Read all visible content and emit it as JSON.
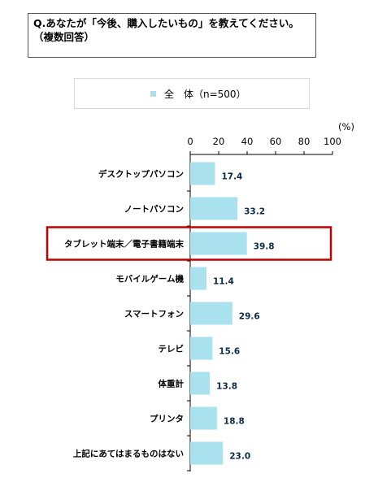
{
  "question": {
    "line1": "Q.あなたが「今後、購入したいもの」を教えてください。",
    "line2": "（複数回答）"
  },
  "legend": {
    "label": "全　体（n=500）"
  },
  "colors": {
    "bar": "#a9e1ee",
    "highlight": "#c00000",
    "axis": "#000000"
  },
  "chart_data": {
    "type": "bar",
    "orientation": "horizontal",
    "unit_label": "(%)",
    "xlim": [
      0,
      100
    ],
    "ticks": [
      "0",
      "20",
      "40",
      "60",
      "80",
      "100"
    ],
    "grid": false,
    "legend_position": "top",
    "highlighted_category": "タブレット端末／電子書籍端末",
    "categories": [
      "デスクトップパソコン",
      "ノートパソコン",
      "タブレット端末／電子書籍端末",
      "モバイルゲーム機",
      "スマートフォン",
      "テレビ",
      "体重計",
      "プリンタ",
      "上記にあてはまるものはない"
    ],
    "series": [
      {
        "name": "全　体（n=500）",
        "values": [
          17.4,
          33.2,
          39.8,
          11.4,
          29.6,
          15.6,
          13.8,
          18.8,
          23.0
        ],
        "labels": [
          "17.4",
          "33.2",
          "39.8",
          "11.4",
          "29.6",
          "15.6",
          "13.8",
          "18.8",
          "23.0"
        ]
      }
    ]
  }
}
